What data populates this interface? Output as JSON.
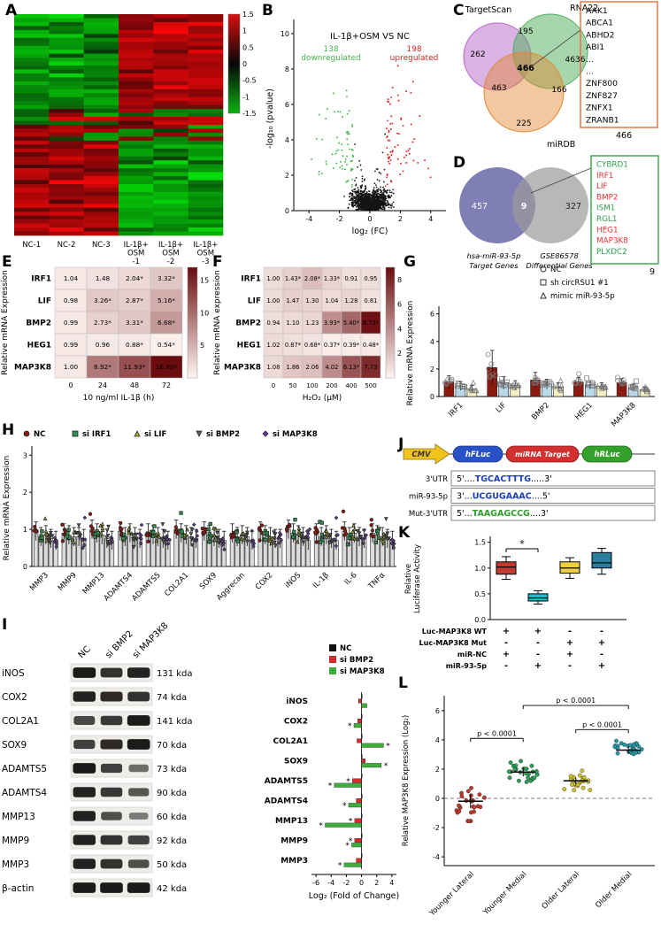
{
  "panels": {
    "A": {
      "label": "A",
      "columns": [
        [
          "NC-1"
        ],
        [
          "NC-2"
        ],
        [
          "NC-3"
        ],
        [
          "IL-1β+",
          "OSM",
          "-1"
        ],
        [
          "IL-1β+",
          "OSM",
          "-2"
        ],
        [
          "IL-1β+",
          "OSM",
          "-3"
        ]
      ],
      "colorbar_ticks": [
        "1.5",
        "1",
        "0.5",
        "0",
        "-0.5",
        "-1",
        "-1.5"
      ],
      "color_up": "#d8100f",
      "color_down": "#0cb212",
      "rows": 56
    },
    "B": {
      "label": "B",
      "title": "IL-1β+OSM VS NC",
      "down_count": "138",
      "down_text": "downregulated",
      "up_count": "198",
      "up_text": "upregulated",
      "xlabel": "log₂ (FC)",
      "ylabel": "-log₁₀ (pvalue)",
      "xtick_vals": [
        -4,
        -2,
        0,
        2,
        4
      ],
      "xtick_labels": [
        "-4",
        "-2",
        "0",
        "2",
        "4"
      ],
      "ytick_vals": [
        0,
        2,
        4,
        6,
        8,
        10
      ],
      "ytick_labels": [
        "0",
        "2",
        "4",
        "6",
        "8",
        "10"
      ],
      "up_color": "#e01f1f",
      "down_color": "#43b649",
      "point_color": "#151515"
    },
    "C": {
      "label": "C",
      "set_labels": [
        "TargetScan",
        "RNA22",
        "miRDB"
      ],
      "n_targetscan": "262",
      "n_ts_rna22": "195",
      "n_rna22": "4636",
      "n_center": "466",
      "n_ts_mirdb": "463",
      "n_rna22_mirdb": "166",
      "n_mirdb": "225",
      "genes": [
        "AAK1",
        "ABCA1",
        "ABHD2",
        "ABI1",
        "...",
        "...",
        "ZNF800",
        "ZNF827",
        "ZNFX1",
        "ZRANB1"
      ],
      "total": "466",
      "box_color": "#e0703a",
      "circle_colors": [
        "#b565c8",
        "#4fae5c",
        "#e2862f"
      ]
    },
    "D": {
      "label": "D",
      "n_left": "457",
      "n_overlap": "9",
      "n_right": "327",
      "left_caption": [
        "hsa-miR-93-5p",
        "Target Genes"
      ],
      "right_caption": [
        "GSE86578",
        "Differential Genes"
      ],
      "genes": [
        {
          "name": "CYBRD1",
          "color": "#2da04c"
        },
        {
          "name": "IRF1",
          "color": "#e03434"
        },
        {
          "name": "LIF",
          "color": "#e03434"
        },
        {
          "name": "BMP2",
          "color": "#e03434"
        },
        {
          "name": "ISM1",
          "color": "#2da04c"
        },
        {
          "name": "RGL1",
          "color": "#2da04c"
        },
        {
          "name": "HEG1",
          "color": "#e03434"
        },
        {
          "name": "MAP3K8",
          "color": "#e03434"
        },
        {
          "name": "PLXDC2",
          "color": "#2da04c"
        }
      ],
      "total": "9",
      "box_color": "#3aa048",
      "circle_colors": [
        "#6868a8",
        "#9a9a9a"
      ]
    },
    "E": {
      "label": "E",
      "id": "E",
      "ylabel": "Relative mRNA Expression",
      "xlabel": "10 ng/ml IL-1β (h)",
      "rows": [
        "IRF1",
        "LIF",
        "BMP2",
        "HEG1",
        "MAP3K8"
      ],
      "cols": [
        "0",
        "24",
        "48",
        "72"
      ],
      "values": [
        [
          "1.04",
          "1.48",
          "2.04*",
          "3.32*"
        ],
        [
          "0.98",
          "3.26*",
          "2.87*",
          "5.16*"
        ],
        [
          "0.99",
          "2.73*",
          "3.31*",
          "6.68*"
        ],
        [
          "0.99",
          "0.96",
          "0.88*",
          "0.54*"
        ],
        [
          "1.00",
          "8.92*",
          "11.93*",
          "16.80*"
        ]
      ],
      "numeric": [
        [
          1.04,
          1.48,
          2.04,
          3.32
        ],
        [
          0.98,
          3.26,
          2.87,
          5.16
        ],
        [
          0.99,
          2.73,
          3.31,
          6.68
        ],
        [
          0.99,
          0.96,
          0.88,
          0.54
        ],
        [
          1.0,
          8.92,
          11.93,
          16.8
        ]
      ],
      "vmax": 17,
      "cbticks": [
        5,
        10,
        15
      ]
    },
    "F": {
      "label": "F",
      "id": "F",
      "ylabel": "Relative mRNA expression",
      "xlabel": "H₂O₂ (μM)",
      "rows": [
        "IRF1",
        "LIF",
        "BMP2",
        "HEG1",
        "MAP3K8"
      ],
      "cols": [
        "0",
        "50",
        "100",
        "200",
        "400",
        "500"
      ],
      "values": [
        [
          "1.00",
          "1.43*",
          "2.08*",
          "1.33*",
          "0.91",
          "0.95"
        ],
        [
          "1.00",
          "1.47",
          "1.30",
          "1.04",
          "1.28",
          "0.81"
        ],
        [
          "0.94",
          "1.10",
          "1.23",
          "3.93*",
          "5.40*",
          "8.73*"
        ],
        [
          "1.02",
          "0.87*",
          "0.68*",
          "0.37*",
          "0.39*",
          "0.48*"
        ],
        [
          "1.08",
          "1.86",
          "2.06",
          "4.02",
          "6.13*",
          "7.73"
        ]
      ],
      "numeric": [
        [
          1.0,
          1.43,
          2.08,
          1.33,
          0.91,
          0.95
        ],
        [
          1.0,
          1.47,
          1.3,
          1.04,
          1.28,
          0.81
        ],
        [
          0.94,
          1.1,
          1.23,
          3.93,
          5.4,
          8.73
        ],
        [
          1.02,
          0.87,
          0.68,
          0.37,
          0.39,
          0.48
        ],
        [
          1.08,
          1.86,
          2.06,
          4.02,
          6.13,
          7.73
        ]
      ],
      "vmax": 9,
      "cbticks": [
        2,
        4,
        6,
        8
      ]
    },
    "G": {
      "label": "G",
      "ylabel": "Relative mRNA Expression",
      "ytick_vals": [
        0,
        2,
        4,
        6
      ],
      "ytick_labels": [
        "0",
        "2",
        "4",
        "6"
      ],
      "ymax": 6.3,
      "categories": [
        "IRF1",
        "LIF",
        "BMP2",
        "HEG1",
        "MAP3K8"
      ],
      "npts": 7,
      "open_points": true,
      "series": [
        {
          "name": "NC",
          "marker": "circle",
          "color": "#8c1a11",
          "values": [
            1.05,
            2.1,
            1.2,
            1.05,
            1.0
          ],
          "err": [
            0.45,
            1.25,
            0.55,
            0.35,
            0.3
          ]
        },
        {
          "name": "sh circRSU1 #1",
          "marker": "square",
          "color": "#b9d9e8",
          "values": [
            0.75,
            1.0,
            0.9,
            0.85,
            0.65
          ],
          "err": [
            0.3,
            0.45,
            0.35,
            0.3,
            0.25
          ]
        },
        {
          "name": "mimic miR-93-5p",
          "marker": "triangle",
          "color": "#f3eec3",
          "values": [
            0.55,
            0.8,
            0.7,
            0.75,
            0.5
          ],
          "err": [
            0.25,
            0.35,
            0.3,
            0.25,
            0.2
          ]
        }
      ]
    },
    "H": {
      "label": "H",
      "ylabel": "Relative mRNA Expression",
      "ytick_vals": [
        0,
        1,
        2,
        3
      ],
      "ytick_labels": [
        "0",
        "1",
        "2",
        "3"
      ],
      "ymax": 3.15,
      "categories": [
        "MMP3",
        "MMP9",
        "MMP13",
        "ADAMTS4",
        "ADAMTS5",
        "COL2A1",
        "SOX9",
        "Aggrecan",
        "COX2",
        "iNOS",
        "IL-1β",
        "IL-6",
        "TNFα"
      ],
      "npts": 6,
      "bar_fill": "#dcdcdc",
      "err": 0.25,
      "series": [
        {
          "name": "NC",
          "marker": "circle",
          "color": "#8c1a11",
          "values": [
            0.95,
            0.9,
            1.0,
            0.95,
            0.9,
            1.0,
            0.95,
            0.9,
            0.95,
            1.0,
            0.9,
            0.95,
            0.9
          ]
        },
        {
          "name": "si IRF1",
          "marker": "square",
          "color": "#2f8f4e",
          "values": [
            0.8,
            0.85,
            0.9,
            0.8,
            0.85,
            0.9,
            0.85,
            0.8,
            0.85,
            0.9,
            0.8,
            0.8,
            0.85
          ]
        },
        {
          "name": "si LIF",
          "marker": "triangle",
          "color": "#a8a832",
          "values": [
            0.85,
            0.8,
            0.85,
            0.9,
            0.8,
            0.85,
            0.8,
            0.85,
            0.8,
            0.85,
            0.85,
            0.9,
            0.8
          ]
        },
        {
          "name": "si BMP2",
          "marker": "tridown",
          "color": "#5a5a5a",
          "values": [
            0.75,
            0.8,
            0.75,
            0.8,
            0.75,
            0.8,
            0.75,
            0.8,
            0.75,
            0.8,
            0.75,
            0.8,
            0.75
          ]
        },
        {
          "name": "si MAP3K8",
          "marker": "diamond",
          "color": "#6b3fa0",
          "values": [
            0.7,
            0.75,
            0.7,
            0.75,
            0.7,
            0.75,
            0.7,
            0.7,
            0.75,
            0.7,
            0.7,
            0.75,
            0.7
          ]
        }
      ]
    },
    "I": {
      "label": "I",
      "lanes": [
        "NC",
        "si BMP2",
        "si MAP3K8"
      ],
      "rows": [
        {
          "name": "iNOS",
          "kda": "131 kda",
          "bands": [
            0.95,
            0.8,
            0.9
          ]
        },
        {
          "name": "COX2",
          "kda": "74 kda",
          "bands": [
            0.9,
            0.85,
            0.8
          ]
        },
        {
          "name": "COL2A1",
          "kda": "141 kda",
          "bands": [
            0.65,
            0.75,
            0.95
          ]
        },
        {
          "name": "SOX9",
          "kda": "70 kda",
          "bands": [
            0.7,
            0.85,
            0.95
          ]
        },
        {
          "name": "ADAMTS5",
          "kda": "73 kda",
          "bands": [
            0.95,
            0.7,
            0.4
          ]
        },
        {
          "name": "ADAMTS4",
          "kda": "90 kda",
          "bands": [
            0.9,
            0.75,
            0.55
          ]
        },
        {
          "name": "MMP13",
          "kda": "60 kda",
          "bands": [
            0.9,
            0.6,
            0.3
          ]
        },
        {
          "name": "MMP9",
          "kda": "92 kda",
          "bands": [
            0.9,
            0.8,
            0.7
          ]
        },
        {
          "name": "MMP3",
          "kda": "50 kda",
          "bands": [
            0.9,
            0.8,
            0.6
          ]
        },
        {
          "name": "β-actin",
          "kda": "42 kda",
          "bands": [
            0.95,
            0.95,
            0.95
          ]
        }
      ],
      "bar": {
        "xlabel": "Log₂ (Fold of Change)",
        "xtick_vals": [
          -6,
          -4,
          -2,
          0,
          2,
          4
        ],
        "xtick_labels": [
          "-6",
          "-4",
          "-2",
          "0",
          "2",
          "4"
        ],
        "rows": [
          "iNOS",
          "COX2",
          "COL2A1",
          "SOX9",
          "ADAMTS5",
          "ADAMTS4",
          "MMP13",
          "MMP9",
          "MMP3"
        ],
        "series": [
          {
            "name": "NC",
            "color": "#111111",
            "values": [
              0.05,
              0.05,
              0.05,
              0.05,
              0.05,
              0.05,
              0.05,
              0.05,
              0.05
            ]
          },
          {
            "name": "si BMP2",
            "color": "#d62c2c",
            "values": [
              -0.4,
              -0.5,
              -0.6,
              0.5,
              -1.2,
              -0.7,
              -0.9,
              -0.9,
              -0.7
            ]
          },
          {
            "name": "si MAP3K8",
            "color": "#3fae3f",
            "values": [
              0.7,
              -1.0,
              2.9,
              2.6,
              -3.6,
              -1.7,
              -4.8,
              -1.3,
              -2.3
            ]
          }
        ]
      }
    },
    "J": {
      "label": "J",
      "blocks": [
        {
          "text": "CMV",
          "fill": "#f2c31c",
          "stroke": "#8a7210",
          "shape": "arrow",
          "text_color": "#333333"
        },
        {
          "text": "hFLuc",
          "fill": "#2a52c8",
          "stroke": "#16306e",
          "shape": "pill",
          "text_color": "#ffffff"
        },
        {
          "text": "miRNA Target",
          "fill": "#d22f2f",
          "stroke": "#7e1414",
          "shape": "pill",
          "text_color": "#ffffff"
        },
        {
          "text": "hRLuc",
          "fill": "#35a02c",
          "stroke": "#1c5f17",
          "shape": "pill",
          "text_color": "#ffffff"
        }
      ],
      "seq_rows": [
        {
          "label": "3'UTR",
          "prefix": "5'....",
          "seq": "TGCACTTTG",
          "suffix": ".....3'",
          "color": "#1a3fbf"
        },
        {
          "label": "miR-93-5p",
          "prefix": "3'...",
          "seq": "UCGUGAAAC",
          "suffix": "....5'",
          "color": "#1a3fbf"
        },
        {
          "label": "Mut-3'UTR",
          "prefix": "5'...",
          "seq": "TAAGAGCCG",
          "suffix": "....3'",
          "color": "#2f9e2f"
        }
      ]
    },
    "K": {
      "label": "K",
      "ylabel_lines": [
        "Relative",
        "Luciferase Activity"
      ],
      "ytick_vals": [
        0,
        0.5,
        1,
        1.5
      ],
      "ytick_labels": [
        "0.0",
        "0.5",
        "1.0",
        "1.5"
      ],
      "star": "*",
      "boxes": [
        {
          "color": "#c23b2e",
          "wlo": 0.78,
          "blo": 0.88,
          "med": 1.02,
          "bhi": 1.12,
          "whi": 1.22
        },
        {
          "color": "#29b6c8",
          "wlo": 0.3,
          "blo": 0.36,
          "med": 0.42,
          "bhi": 0.5,
          "whi": 0.56
        },
        {
          "color": "#f0cf3c",
          "wlo": 0.8,
          "blo": 0.9,
          "med": 1.0,
          "bhi": 1.12,
          "whi": 1.2
        },
        {
          "color": "#2a7f9e",
          "wlo": 0.88,
          "blo": 1.0,
          "med": 1.1,
          "bhi": 1.3,
          "whi": 1.38
        }
      ],
      "matrix": [
        {
          "label": "Luc-MAP3K8 WT",
          "signs": [
            "+",
            "+",
            "-",
            "-"
          ]
        },
        {
          "label": "Luc-MAP3K8 Mut",
          "signs": [
            "-",
            "-",
            "+",
            "+"
          ]
        },
        {
          "label": "miR-NC",
          "signs": [
            "+",
            "-",
            "+",
            "-"
          ]
        },
        {
          "label": "miR-93-5p",
          "signs": [
            "-",
            "+",
            "-",
            "+"
          ]
        }
      ]
    },
    "L": {
      "label": "L",
      "ylabel": "Relative MAP3K8 Expression (Log₂)",
      "ytick_vals": [
        -4,
        -2,
        0,
        2,
        4,
        6
      ],
      "ytick_labels": [
        "-4",
        "-2",
        "0",
        "2",
        "4",
        "6"
      ],
      "groups": [
        {
          "label": "Younger Lateral",
          "color": "#c0392b",
          "mean": -0.2,
          "sd": 1.2
        },
        {
          "label": "Younger Medial",
          "color": "#27a053",
          "mean": 1.8,
          "sd": 0.75
        },
        {
          "label": "Older Lateral",
          "color": "#cfc32a",
          "mean": 1.2,
          "sd": 0.6
        },
        {
          "label": "Older Medial",
          "color": "#2598a6",
          "mean": 3.3,
          "sd": 0.65
        }
      ],
      "brackets": [
        {
          "a": 0,
          "b": 1,
          "label": "p < 0.0001",
          "y": 4.1
        },
        {
          "a": 2,
          "b": 3,
          "label": "p < 0.0001",
          "y": 4.7
        },
        {
          "a": 1,
          "b": 3,
          "label": "p < 0.0001",
          "y": 6.35
        }
      ]
    }
  }
}
